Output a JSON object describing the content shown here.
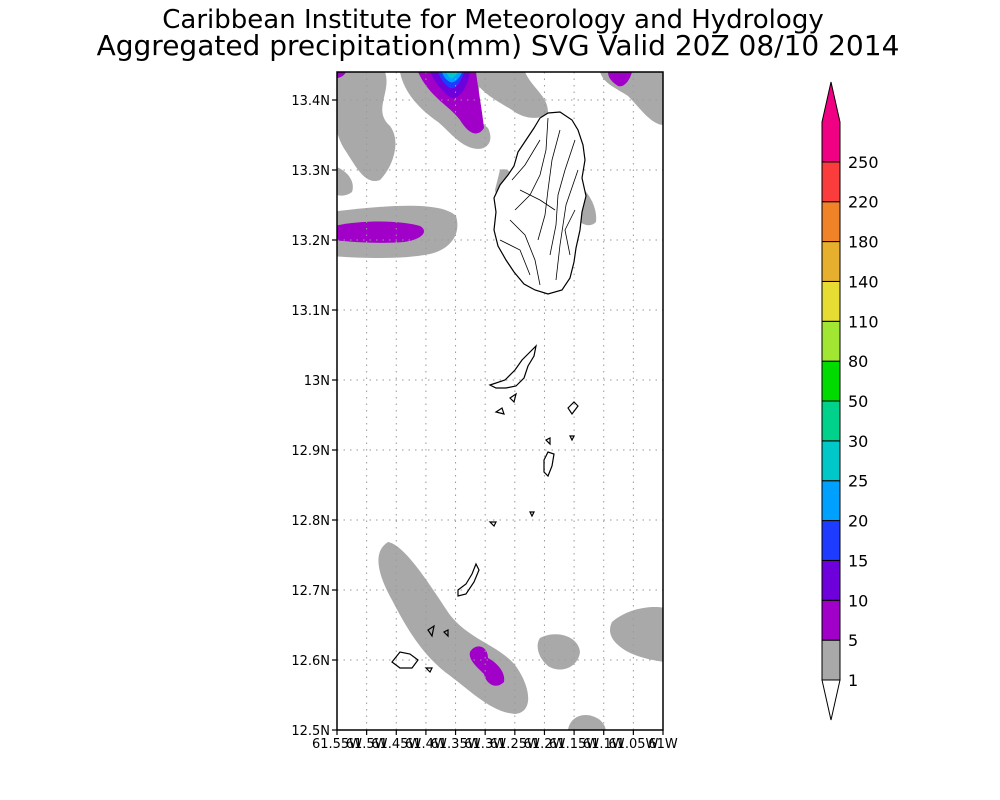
{
  "header": {
    "line1": "Caribbean Institute for Meteorology and Hydrology",
    "line2": "Aggregated precipitation(mm) SVG Valid 20Z 08/10 2014"
  },
  "map": {
    "lat_labels": [
      "13.4N",
      "13.3N",
      "13.2N",
      "13.1N",
      "13N",
      "12.9N",
      "12.8N",
      "12.7N",
      "12.6N",
      "12.5N"
    ],
    "lon_labels": [
      "61.55W",
      "61.5W",
      "61.45W",
      "61.4W",
      "61.35W",
      "61.3W",
      "61.25W",
      "61.2W",
      "61.15W",
      "61.1W",
      "61.05W",
      "61W"
    ],
    "lat_range": [
      12.5,
      13.44
    ],
    "lon_range": [
      -61.55,
      -61.0
    ]
  },
  "colorbar": {
    "levels": [
      "1",
      "5",
      "10",
      "15",
      "20",
      "25",
      "30",
      "50",
      "80",
      "110",
      "140",
      "180",
      "220",
      "250"
    ],
    "colors": [
      "#a9a9a9",
      "#a000c8",
      "#6e00dc",
      "#1e3cff",
      "#00a0ff",
      "#00c8c8",
      "#00d28c",
      "#00dc00",
      "#a0e632",
      "#e6dc32",
      "#e6af2d",
      "#f08228",
      "#fa3c3c",
      "#f00082"
    ]
  }
}
